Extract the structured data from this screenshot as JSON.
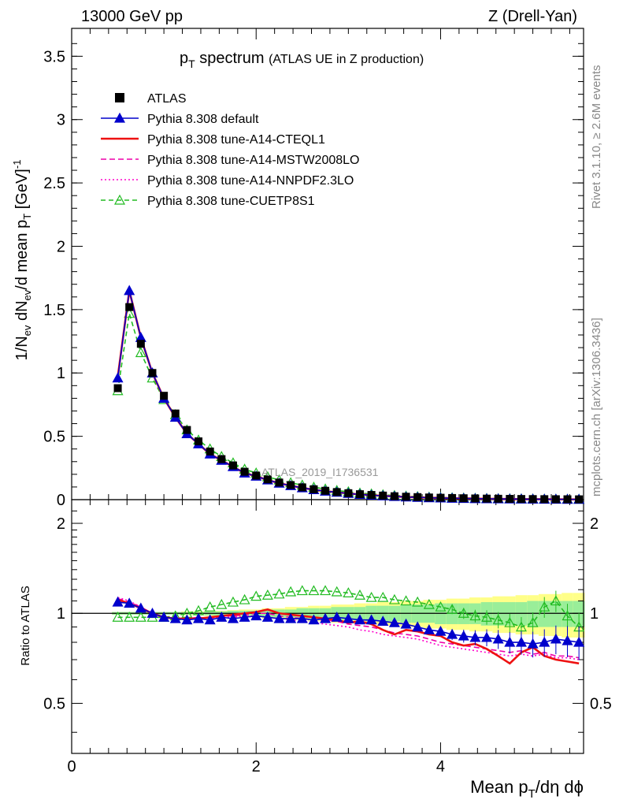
{
  "header": {
    "energy": "13000 GeV pp",
    "process": "Z (Drell-Yan)"
  },
  "side_labels": {
    "rivet": "Rivet 3.1.10, ≥ 2.6M events",
    "mcplots": "mcplots.cern.ch [arXiv:1306.3436]"
  },
  "main_plot": {
    "title_main": "p",
    "title_sub": "T",
    "title_rest": " spectrum",
    "title_paren": "(ATLAS UE in Z production)",
    "ylabel": "1/N",
    "ylabel_sub": "ev",
    "ylabel_mid": " dN",
    "ylabel_sub2": "ev",
    "ylabel_rest": "/d mean p",
    "ylabel_sub3": "T",
    "ylabel_unit": " [GeV]",
    "ylabel_sup": "-1",
    "analysis_id": "ATLAS_2019_I1736531",
    "yticks": [
      "0",
      "0.5",
      "1",
      "1.5",
      "2",
      "2.5",
      "3",
      "3.5"
    ]
  },
  "ratio_plot": {
    "ylabel": "Ratio to ATLAS",
    "yticks_left": [
      "0.5",
      "1",
      "2"
    ],
    "yticks_right": [
      "0.5",
      "1",
      "2"
    ]
  },
  "x_axis": {
    "label": "Mean p",
    "label_sub": "T",
    "label_rest": "/dη dϕ",
    "ticks": [
      "0",
      "2",
      "4"
    ]
  },
  "legend": [
    {
      "label": "ATLAS",
      "color": "#000000",
      "style": "data"
    },
    {
      "label": "Pythia 8.308 default",
      "color": "#0000cc",
      "style": "triangle-solid"
    },
    {
      "label": "Pythia 8.308 tune-A14-CTEQL1",
      "color": "#ee1111",
      "style": "solid-thick"
    },
    {
      "label": "Pythia 8.308 tune-A14-MSTW2008LO",
      "color": "#ee00aa",
      "style": "dashed"
    },
    {
      "label": "Pythia 8.308 tune-A14-NNPDF2.3LO",
      "color": "#ff00cc",
      "style": "dotted"
    },
    {
      "label": "Pythia 8.308 tune-CUETP8S1",
      "color": "#22bb22",
      "style": "triangle-open-dashed"
    }
  ],
  "chart_data": {
    "type": "line",
    "title": "p_T spectrum (ATLAS UE in Z production)",
    "xlabel": "Mean p_T/dη dϕ",
    "ylabel": "1/N_ev dN_ev/d mean p_T [GeV]^-1",
    "xlim": [
      0,
      5.55
    ],
    "ylim": [
      0,
      3.72
    ],
    "ratio_ylim": [
      0.34,
      2.4
    ],
    "ratio_log": true,
    "x": [
      0.5,
      0.625,
      0.75,
      0.875,
      1.0,
      1.125,
      1.25,
      1.375,
      1.5,
      1.625,
      1.75,
      1.875,
      2.0,
      2.125,
      2.25,
      2.375,
      2.5,
      2.625,
      2.75,
      2.875,
      3.0,
      3.125,
      3.25,
      3.375,
      3.5,
      3.625,
      3.75,
      3.875,
      4.0,
      4.125,
      4.25,
      4.375,
      4.5,
      4.625,
      4.75,
      4.875,
      5.0,
      5.125,
      5.25,
      5.375,
      5.5
    ],
    "series": [
      {
        "name": "ATLAS",
        "values": [
          0.88,
          1.52,
          1.23,
          1.0,
          0.82,
          0.68,
          0.55,
          0.46,
          0.38,
          0.32,
          0.27,
          0.22,
          0.19,
          0.16,
          0.135,
          0.115,
          0.097,
          0.082,
          0.07,
          0.06,
          0.051,
          0.043,
          0.037,
          0.032,
          0.027,
          0.023,
          0.02,
          0.017,
          0.015,
          0.013,
          0.011,
          0.0095,
          0.0082,
          0.007,
          0.006,
          0.0052,
          0.0045,
          0.0039,
          0.0034,
          0.003,
          0.0026
        ]
      },
      {
        "name": "Pythia 8.308 default",
        "values": [
          0.96,
          1.65,
          1.28,
          1.0,
          0.8,
          0.65,
          0.52,
          0.44,
          0.36,
          0.31,
          0.26,
          0.21,
          0.185,
          0.155,
          0.13,
          0.11,
          0.093,
          0.078,
          0.067,
          0.058,
          0.049,
          0.041,
          0.035,
          0.03,
          0.025,
          0.021,
          0.018,
          0.015,
          0.013,
          0.011,
          0.0095,
          0.008,
          0.007,
          0.006,
          0.005,
          0.0043,
          0.0037,
          0.0032,
          0.0028,
          0.0024,
          0.0021
        ]
      },
      {
        "name": "Pythia 8.308 tune-A14-CTEQL1",
        "values": [
          0.97,
          1.65,
          1.28,
          1.0,
          0.8,
          0.65,
          0.52,
          0.44,
          0.36,
          0.31,
          0.26,
          0.21,
          0.185,
          0.155,
          0.13,
          0.11,
          0.093,
          0.078,
          0.067,
          0.058,
          0.049,
          0.041,
          0.035,
          0.03,
          0.025,
          0.021,
          0.018,
          0.015,
          0.013,
          0.011,
          0.0095,
          0.008,
          0.007,
          0.006,
          0.005,
          0.0043,
          0.0037,
          0.0032,
          0.0028,
          0.0024,
          0.0021
        ]
      },
      {
        "name": "Pythia 8.308 tune-A14-MSTW2008LO",
        "values": [
          0.97,
          1.64,
          1.28,
          1.0,
          0.8,
          0.65,
          0.52,
          0.44,
          0.36,
          0.31,
          0.26,
          0.21,
          0.185,
          0.155,
          0.13,
          0.11,
          0.093,
          0.078,
          0.067,
          0.058,
          0.049,
          0.041,
          0.035,
          0.03,
          0.025,
          0.021,
          0.018,
          0.015,
          0.013,
          0.011,
          0.0095,
          0.008,
          0.007,
          0.006,
          0.005,
          0.0043,
          0.0037,
          0.0032,
          0.0028,
          0.0024,
          0.0021
        ]
      },
      {
        "name": "Pythia 8.308 tune-A14-NNPDF2.3LO",
        "values": [
          0.98,
          1.64,
          1.28,
          1.0,
          0.8,
          0.65,
          0.52,
          0.44,
          0.36,
          0.31,
          0.26,
          0.21,
          0.185,
          0.155,
          0.13,
          0.11,
          0.093,
          0.078,
          0.067,
          0.058,
          0.049,
          0.041,
          0.035,
          0.03,
          0.025,
          0.021,
          0.018,
          0.015,
          0.013,
          0.011,
          0.0095,
          0.008,
          0.007,
          0.006,
          0.005,
          0.0043,
          0.0037,
          0.0032,
          0.0028,
          0.0024,
          0.0021
        ]
      },
      {
        "name": "Pythia 8.308 tune-CUETP8S1",
        "values": [
          0.86,
          1.47,
          1.16,
          0.96,
          0.79,
          0.67,
          0.55,
          0.47,
          0.4,
          0.34,
          0.29,
          0.24,
          0.21,
          0.18,
          0.155,
          0.133,
          0.115,
          0.098,
          0.084,
          0.072,
          0.062,
          0.052,
          0.045,
          0.039,
          0.033,
          0.028,
          0.024,
          0.02,
          0.017,
          0.015,
          0.013,
          0.011,
          0.0095,
          0.0081,
          0.007,
          0.006,
          0.0052,
          0.0045,
          0.0039,
          0.0034,
          0.003
        ]
      }
    ],
    "ratios": [
      {
        "name": "Pythia 8.308 default",
        "values": [
          1.09,
          1.08,
          1.04,
          1.0,
          0.97,
          0.96,
          0.95,
          0.96,
          0.95,
          0.97,
          0.96,
          0.97,
          0.98,
          0.97,
          0.96,
          0.96,
          0.96,
          0.95,
          0.96,
          0.97,
          0.96,
          0.95,
          0.95,
          0.94,
          0.93,
          0.92,
          0.9,
          0.88,
          0.87,
          0.85,
          0.84,
          0.83,
          0.83,
          0.82,
          0.8,
          0.8,
          0.79,
          0.8,
          0.82,
          0.81,
          0.8
        ]
      },
      {
        "name": "Pythia 8.308 tune-A14-CTEQL1",
        "values": [
          1.11,
          1.08,
          1.04,
          1.0,
          0.97,
          0.96,
          0.96,
          0.96,
          0.97,
          0.98,
          0.99,
          1.0,
          1.01,
          1.03,
          1.0,
          0.99,
          0.98,
          0.97,
          0.96,
          0.95,
          0.93,
          0.94,
          0.92,
          0.88,
          0.85,
          0.88,
          0.87,
          0.85,
          0.84,
          0.8,
          0.78,
          0.79,
          0.76,
          0.72,
          0.68,
          0.74,
          0.77,
          0.72,
          0.7,
          0.69,
          0.68
        ]
      },
      {
        "name": "Pythia 8.308 tune-A14-MSTW2008LO",
        "values": [
          1.12,
          1.09,
          1.05,
          1.0,
          0.97,
          0.96,
          0.96,
          0.97,
          0.96,
          0.98,
          0.98,
          0.99,
          1.0,
          1.0,
          0.98,
          0.97,
          0.96,
          0.95,
          0.95,
          0.94,
          0.92,
          0.91,
          0.9,
          0.88,
          0.86,
          0.85,
          0.84,
          0.82,
          0.8,
          0.79,
          0.78,
          0.77,
          0.76,
          0.75,
          0.74,
          0.75,
          0.73,
          0.74,
          0.72,
          0.72,
          0.71
        ]
      },
      {
        "name": "Pythia 8.308 tune-A14-NNPDF2.3LO",
        "values": [
          1.13,
          1.1,
          1.05,
          1.0,
          0.97,
          0.96,
          0.96,
          0.96,
          0.96,
          0.97,
          0.97,
          0.98,
          0.98,
          0.97,
          0.96,
          0.95,
          0.94,
          0.93,
          0.92,
          0.91,
          0.9,
          0.88,
          0.87,
          0.85,
          0.84,
          0.83,
          0.82,
          0.8,
          0.78,
          0.77,
          0.76,
          0.75,
          0.74,
          0.73,
          0.72,
          0.73,
          0.72,
          0.73,
          0.71,
          0.71,
          0.7
        ]
      },
      {
        "name": "Pythia 8.308 tune-CUETP8S1",
        "values": [
          0.97,
          0.97,
          0.97,
          0.97,
          0.97,
          0.98,
          1.0,
          1.02,
          1.05,
          1.07,
          1.09,
          1.11,
          1.14,
          1.15,
          1.16,
          1.18,
          1.19,
          1.19,
          1.19,
          1.18,
          1.17,
          1.15,
          1.13,
          1.13,
          1.11,
          1.1,
          1.09,
          1.07,
          1.05,
          1.03,
          1.0,
          0.98,
          0.97,
          0.95,
          0.93,
          0.9,
          0.93,
          1.05,
          1.1,
          0.98,
          0.9
        ]
      }
    ],
    "data_band": {
      "stat_yellow_half_width": [
        0.01,
        0.01,
        0.01,
        0.01,
        0.01,
        0.01,
        0.015,
        0.015,
        0.02,
        0.02,
        0.025,
        0.03,
        0.03,
        0.04,
        0.04,
        0.05,
        0.05,
        0.06,
        0.06,
        0.07,
        0.07,
        0.08,
        0.08,
        0.09,
        0.09,
        0.1,
        0.1,
        0.11,
        0.11,
        0.12,
        0.12,
        0.13,
        0.13,
        0.14,
        0.14,
        0.15,
        0.15,
        0.16,
        0.16,
        0.17,
        0.17
      ],
      "green_half_width": [
        0.01,
        0.01,
        0.01,
        0.01,
        0.01,
        0.01,
        0.01,
        0.01,
        0.015,
        0.015,
        0.02,
        0.02,
        0.02,
        0.03,
        0.03,
        0.03,
        0.04,
        0.04,
        0.04,
        0.05,
        0.05,
        0.05,
        0.06,
        0.06,
        0.06,
        0.07,
        0.07,
        0.07,
        0.08,
        0.08,
        0.08,
        0.08,
        0.09,
        0.09,
        0.09,
        0.09,
        0.1,
        0.1,
        0.1,
        0.1,
        0.1
      ]
    }
  }
}
